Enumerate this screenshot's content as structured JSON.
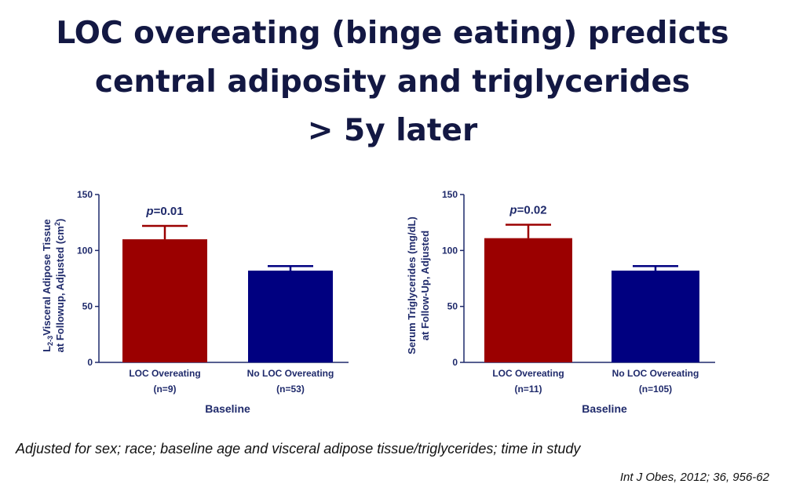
{
  "slide": {
    "title_lines": [
      "LOC overeating (binge eating) predicts",
      "central adiposity and triglycerides",
      "> 5y  later"
    ],
    "footnote": "Adjusted for sex; race; baseline age and visceral adipose tissue/triglycerides; time in study",
    "citation": "Int J Obes, 2012; 36, 956-62"
  },
  "chart_data": [
    {
      "type": "bar",
      "categories": [
        "LOC Overeating",
        "No LOC Overeating"
      ],
      "category_n": [
        "(n=9)",
        "(n=53)"
      ],
      "values": [
        110,
        82
      ],
      "error_upper": [
        122,
        86
      ],
      "colors": [
        "#9b0000",
        "#000080"
      ],
      "ylim": [
        0,
        150
      ],
      "yticks": [
        0,
        50,
        100,
        150
      ],
      "ylabel_lines": [
        "L2-3Visceral Adipose Tissue",
        "at Followup, Adjusted (cm2)"
      ],
      "xlabel": "Baseline",
      "annotation": {
        "p": "p",
        "rest": "=0.01"
      },
      "grid": false
    },
    {
      "type": "bar",
      "categories": [
        "LOC Overeating",
        "No LOC Overeating"
      ],
      "category_n": [
        "(n=11)",
        "(n=105)"
      ],
      "values": [
        111,
        82
      ],
      "error_upper": [
        123,
        86
      ],
      "colors": [
        "#9b0000",
        "#000080"
      ],
      "ylim": [
        0,
        150
      ],
      "yticks": [
        0,
        50,
        100,
        150
      ],
      "ylabel_lines": [
        "Serum Triglycerides (mg/dL)",
        "at Follow-Up, Adjusted"
      ],
      "xlabel": "Baseline",
      "annotation": {
        "p": "p",
        "rest": "=0.02"
      },
      "grid": false
    }
  ]
}
